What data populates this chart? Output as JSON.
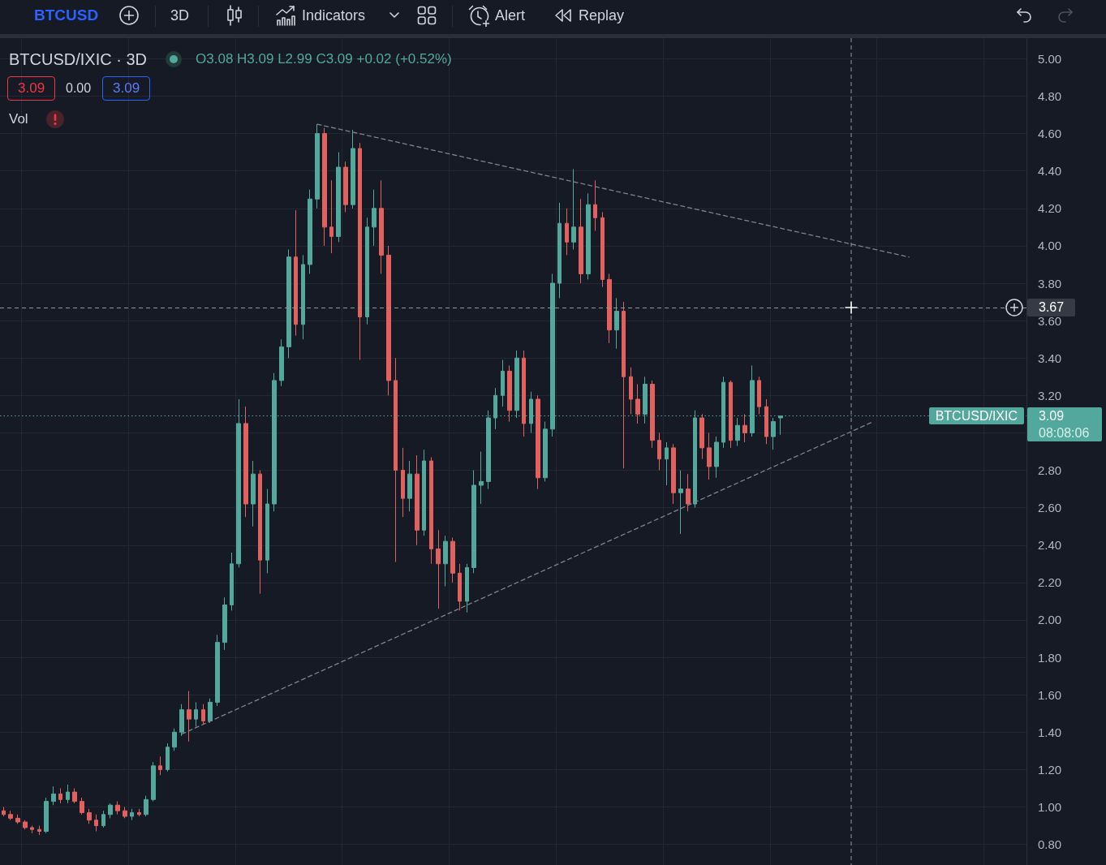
{
  "chart_data": {
    "type": "candlestick",
    "title": "BTCUSD/IXIC · 3D",
    "subtitle": "O3.08 H3.09 L2.99 C3.09 +0.02 (+0.52%)",
    "categories": [
      null,
      null,
      null,
      null,
      null,
      null,
      null,
      null,
      null,
      null,
      null,
      null,
      null,
      null,
      null,
      null,
      null,
      null,
      null,
      null,
      null,
      null,
      null,
      null,
      null,
      null,
      null,
      null,
      null,
      null,
      null,
      null,
      null,
      null,
      null,
      null,
      null,
      null,
      null,
      null,
      null,
      null,
      null,
      null,
      null,
      null,
      null,
      null,
      null,
      null,
      null,
      null,
      null,
      null,
      null,
      null,
      null,
      null,
      null,
      null,
      null,
      null,
      null,
      null,
      null,
      null,
      null,
      null,
      null,
      null,
      null,
      null,
      null,
      null,
      null,
      null,
      null,
      null,
      null,
      null,
      null,
      null,
      null,
      null,
      null,
      null,
      null,
      null,
      null,
      null,
      null,
      null,
      null,
      null,
      null,
      null,
      null,
      null,
      null,
      null,
      null,
      null,
      null,
      null,
      null,
      null,
      null,
      null,
      null,
      null,
      null,
      null,
      null,
      null,
      null,
      null,
      null,
      null,
      null,
      null,
      null,
      null,
      null,
      null,
      null,
      null,
      null,
      null,
      null,
      null,
      null,
      null,
      null,
      null,
      null,
      null,
      null,
      null,
      null,
      null,
      null,
      null,
      null,
      null
    ],
    "series": [
      {
        "type": "candlestick",
        "ohlc": [
          [
            0.98,
            1.0,
            0.95,
            0.96
          ],
          [
            0.96,
            0.98,
            0.93,
            0.94
          ],
          [
            0.94,
            0.96,
            0.91,
            0.92
          ],
          [
            0.92,
            0.93,
            0.88,
            0.89
          ],
          [
            0.89,
            0.9,
            0.86,
            0.88
          ],
          [
            0.88,
            0.9,
            0.85,
            0.87
          ],
          [
            0.87,
            1.05,
            0.86,
            1.03
          ],
          [
            1.03,
            1.11,
            1.01,
            1.07
          ],
          [
            1.07,
            1.1,
            1.02,
            1.04
          ],
          [
            1.04,
            1.12,
            1.02,
            1.08
          ],
          [
            1.08,
            1.1,
            1.02,
            1.03
          ],
          [
            1.03,
            1.05,
            0.96,
            0.97
          ],
          [
            0.97,
            0.99,
            0.91,
            0.93
          ],
          [
            0.93,
            0.96,
            0.87,
            0.9
          ],
          [
            0.9,
            0.98,
            0.89,
            0.96
          ],
          [
            0.96,
            1.02,
            0.94,
            1.01
          ],
          [
            1.01,
            1.03,
            0.96,
            0.98
          ],
          [
            0.98,
            1.0,
            0.94,
            0.95
          ],
          [
            0.95,
            0.99,
            0.93,
            0.97
          ],
          [
            0.97,
            0.99,
            0.95,
            0.96
          ],
          [
            0.96,
            1.06,
            0.95,
            1.04
          ],
          [
            1.04,
            1.24,
            1.03,
            1.22
          ],
          [
            1.22,
            1.27,
            1.17,
            1.2
          ],
          [
            1.2,
            1.34,
            1.19,
            1.32
          ],
          [
            1.32,
            1.42,
            1.3,
            1.4
          ],
          [
            1.4,
            1.55,
            1.38,
            1.52
          ],
          [
            1.52,
            1.62,
            1.35,
            1.47
          ],
          [
            1.47,
            1.56,
            1.43,
            1.52
          ],
          [
            1.52,
            1.55,
            1.44,
            1.46
          ],
          [
            1.46,
            1.58,
            1.45,
            1.56
          ],
          [
            1.56,
            1.92,
            1.54,
            1.88
          ],
          [
            1.88,
            2.12,
            1.84,
            2.08
          ],
          [
            2.08,
            2.36,
            2.05,
            2.3
          ],
          [
            2.3,
            3.18,
            2.28,
            3.05
          ],
          [
            3.05,
            3.14,
            2.55,
            2.62
          ],
          [
            2.62,
            2.85,
            2.5,
            2.78
          ],
          [
            2.78,
            2.8,
            2.14,
            2.32
          ],
          [
            2.32,
            2.7,
            2.25,
            2.62
          ],
          [
            2.62,
            3.32,
            2.58,
            3.28
          ],
          [
            3.28,
            3.5,
            3.25,
            3.46
          ],
          [
            3.46,
            3.98,
            3.4,
            3.94
          ],
          [
            3.94,
            4.19,
            3.52,
            3.58
          ],
          [
            3.58,
            3.95,
            3.5,
            3.9
          ],
          [
            3.9,
            4.3,
            3.85,
            4.25
          ],
          [
            4.25,
            4.65,
            4.2,
            4.6
          ],
          [
            4.6,
            4.63,
            4.0,
            4.1
          ],
          [
            4.1,
            4.35,
            3.96,
            4.05
          ],
          [
            4.05,
            4.5,
            4.02,
            4.42
          ],
          [
            4.42,
            4.45,
            4.18,
            4.22
          ],
          [
            4.22,
            4.62,
            4.2,
            4.52
          ],
          [
            4.52,
            4.55,
            3.39,
            3.62
          ],
          [
            3.62,
            4.15,
            3.58,
            4.1
          ],
          [
            4.1,
            4.3,
            4.0,
            4.2
          ],
          [
            4.2,
            4.35,
            3.85,
            3.95
          ],
          [
            3.95,
            4.0,
            3.2,
            3.28
          ],
          [
            3.28,
            3.4,
            2.31,
            2.8
          ],
          [
            2.8,
            2.92,
            2.55,
            2.65
          ],
          [
            2.65,
            2.85,
            2.58,
            2.78
          ],
          [
            2.78,
            2.88,
            2.4,
            2.48
          ],
          [
            2.48,
            2.91,
            2.45,
            2.85
          ],
          [
            2.85,
            2.87,
            2.3,
            2.38
          ],
          [
            2.38,
            2.48,
            2.06,
            2.3
          ],
          [
            2.3,
            2.45,
            2.18,
            2.42
          ],
          [
            2.42,
            2.44,
            2.2,
            2.25
          ],
          [
            2.25,
            2.3,
            2.05,
            2.1
          ],
          [
            2.1,
            2.3,
            2.04,
            2.28
          ],
          [
            2.28,
            2.8,
            2.25,
            2.72
          ],
          [
            2.72,
            2.9,
            2.62,
            2.74
          ],
          [
            2.74,
            3.12,
            2.7,
            3.08
          ],
          [
            3.08,
            3.24,
            3.02,
            3.2
          ],
          [
            3.2,
            3.39,
            3.14,
            3.33
          ],
          [
            3.33,
            3.36,
            3.06,
            3.12
          ],
          [
            3.12,
            3.44,
            3.08,
            3.4
          ],
          [
            3.4,
            3.44,
            2.98,
            3.05
          ],
          [
            3.05,
            3.22,
            3.0,
            3.18
          ],
          [
            3.18,
            3.2,
            2.7,
            2.76
          ],
          [
            2.76,
            3.06,
            2.74,
            3.02
          ],
          [
            3.02,
            3.85,
            2.98,
            3.8
          ],
          [
            3.8,
            4.23,
            3.72,
            4.12
          ],
          [
            4.12,
            4.2,
            3.95,
            4.02
          ],
          [
            4.02,
            4.41,
            3.98,
            4.1
          ],
          [
            4.1,
            4.25,
            3.8,
            3.85
          ],
          [
            3.85,
            4.28,
            3.82,
            4.22
          ],
          [
            4.22,
            4.35,
            4.08,
            4.15
          ],
          [
            4.15,
            4.18,
            3.78,
            3.82
          ],
          [
            3.82,
            3.85,
            3.48,
            3.55
          ],
          [
            3.55,
            3.72,
            3.45,
            3.65
          ],
          [
            3.65,
            3.7,
            2.81,
            3.3
          ],
          [
            3.3,
            3.35,
            3.1,
            3.18
          ],
          [
            3.18,
            3.26,
            3.05,
            3.1
          ],
          [
            3.1,
            3.3,
            3.05,
            3.26
          ],
          [
            3.26,
            3.28,
            2.92,
            2.96
          ],
          [
            2.96,
            3.0,
            2.8,
            2.86
          ],
          [
            2.86,
            2.95,
            2.72,
            2.92
          ],
          [
            2.92,
            2.94,
            2.62,
            2.68
          ],
          [
            2.68,
            2.8,
            2.46,
            2.7
          ],
          [
            2.7,
            2.78,
            2.58,
            2.62
          ],
          [
            2.62,
            3.12,
            2.6,
            3.08
          ],
          [
            3.08,
            3.1,
            2.86,
            2.92
          ],
          [
            2.92,
            3.0,
            2.75,
            2.82
          ],
          [
            2.82,
            2.98,
            2.76,
            2.95
          ],
          [
            2.95,
            3.3,
            2.92,
            3.27
          ],
          [
            3.27,
            3.28,
            2.92,
            2.96
          ],
          [
            2.96,
            3.08,
            2.93,
            3.04
          ],
          [
            3.04,
            3.1,
            2.95,
            3.0
          ],
          [
            3.0,
            3.36,
            2.98,
            3.28
          ],
          [
            3.28,
            3.3,
            3.1,
            3.14
          ],
          [
            3.14,
            3.18,
            2.94,
            2.98
          ],
          [
            2.98,
            3.08,
            2.91,
            3.06
          ],
          [
            3.08,
            3.09,
            2.99,
            3.09
          ],
          null,
          null,
          null,
          null,
          null,
          null,
          null,
          null,
          null,
          null,
          null,
          null,
          null,
          null,
          null,
          null,
          null,
          null,
          null,
          null,
          null,
          null,
          null,
          null,
          null,
          null,
          null,
          null,
          null,
          null,
          null,
          null,
          null,
          null
        ],
        "colors": [
          "#e2605e",
          "#e2605e",
          "#e2605e",
          "#e2605e",
          "#e2605e",
          "#e2605e",
          "#52a89c",
          "#52a89c",
          "#e2605e",
          "#52a89c",
          "#e2605e",
          "#e2605e",
          "#e2605e",
          "#e2605e",
          "#52a89c",
          "#52a89c",
          "#e2605e",
          "#e2605e",
          "#52a89c",
          "#e2605e",
          "#52a89c",
          "#52a89c",
          "#e2605e",
          "#52a89c",
          "#52a89c",
          "#52a89c",
          "#e2605e",
          "#52a89c",
          "#e2605e",
          "#52a89c",
          "#52a89c",
          "#52a89c",
          "#52a89c",
          "#52a89c",
          "#e2605e",
          "#52a89c",
          "#e2605e",
          "#52a89c",
          "#52a89c",
          "#52a89c",
          "#52a89c",
          "#e2605e",
          "#52a89c",
          "#52a89c",
          "#52a89c",
          "#e2605e",
          "#e2605e",
          "#52a89c",
          "#e2605e",
          "#52a89c",
          "#e2605e",
          "#52a89c",
          "#52a89c",
          "#e2605e",
          "#e2605e",
          "#e2605e",
          "#e2605e",
          "#52a89c",
          "#e2605e",
          "#52a89c",
          "#e2605e",
          "#e2605e",
          "#52a89c",
          "#e2605e",
          "#e2605e",
          "#52a89c",
          "#52a89c",
          "#52a89c",
          "#52a89c",
          "#52a89c",
          "#52a89c",
          "#e2605e",
          "#52a89c",
          "#e2605e",
          "#52a89c",
          "#e2605e",
          "#52a89c",
          "#52a89c",
          "#52a89c",
          "#e2605e",
          "#52a89c",
          "#e2605e",
          "#52a89c",
          "#e2605e",
          "#e2605e",
          "#e2605e",
          "#52a89c",
          "#e2605e",
          "#e2605e",
          "#e2605e",
          "#52a89c",
          "#e2605e",
          "#e2605e",
          "#52a89c",
          "#e2605e",
          "#52a89c",
          "#e2605e",
          "#52a89c",
          "#e2605e",
          "#e2605e",
          "#52a89c",
          "#52a89c",
          "#e2605e",
          "#52a89c",
          "#e2605e",
          "#52a89c",
          "#e2605e",
          "#e2605e",
          "#52a89c",
          "#52a89c",
          null,
          null,
          null,
          null,
          null,
          null,
          null,
          null,
          null,
          null,
          null,
          null,
          null,
          null,
          null,
          null,
          null,
          null,
          null,
          null,
          null,
          null,
          null,
          null,
          null,
          null,
          null,
          null,
          null,
          null,
          null,
          null,
          null,
          null
        ]
      },
      {
        "type": "line",
        "color": "#7f838e",
        "line_style": "dashed",
        "marker": "none",
        "values": [
          null,
          null,
          null,
          null,
          null,
          null,
          null,
          null,
          null,
          null,
          null,
          null,
          null,
          null,
          null,
          null,
          null,
          null,
          null,
          null,
          null,
          null,
          null,
          null,
          null,
          null,
          null,
          null,
          null,
          null,
          null,
          null,
          null,
          null,
          null,
          null,
          null,
          null,
          null,
          null,
          null,
          null,
          null,
          null,
          4.65,
          null,
          null,
          null,
          null,
          null,
          null,
          null,
          null,
          null,
          null,
          null,
          null,
          null,
          null,
          null,
          null,
          null,
          null,
          null,
          null,
          null,
          null,
          null,
          null,
          null,
          null,
          null,
          null,
          null,
          null,
          null,
          null,
          null,
          null,
          null,
          null,
          null,
          null,
          null,
          null,
          null,
          null,
          null,
          null,
          null,
          null,
          null,
          null,
          null,
          null,
          null,
          null,
          null,
          null,
          null,
          null,
          null,
          null,
          null,
          null,
          null,
          null,
          null,
          null,
          null,
          null,
          null,
          null,
          null,
          null,
          null,
          null,
          null,
          null,
          null,
          null,
          null,
          null,
          null,
          null,
          null,
          null,
          3.94,
          null,
          null,
          null,
          null,
          null,
          null,
          null,
          null,
          null,
          null,
          null,
          null,
          null,
          null,
          null,
          null
        ]
      },
      {
        "type": "line",
        "color": "#7f838e",
        "line_style": "dashed",
        "marker": "none",
        "values": [
          null,
          null,
          null,
          null,
          null,
          null,
          null,
          null,
          null,
          null,
          null,
          null,
          null,
          null,
          null,
          null,
          null,
          null,
          null,
          null,
          null,
          null,
          null,
          null,
          null,
          1.39,
          null,
          null,
          null,
          null,
          null,
          null,
          null,
          null,
          null,
          null,
          null,
          null,
          null,
          null,
          null,
          null,
          null,
          null,
          null,
          null,
          null,
          null,
          null,
          null,
          null,
          null,
          null,
          null,
          null,
          null,
          null,
          null,
          null,
          null,
          null,
          null,
          null,
          null,
          null,
          null,
          null,
          null,
          null,
          null,
          null,
          null,
          null,
          null,
          null,
          null,
          null,
          null,
          null,
          null,
          null,
          null,
          null,
          null,
          null,
          null,
          null,
          null,
          null,
          null,
          null,
          null,
          null,
          null,
          null,
          null,
          null,
          null,
          null,
          null,
          null,
          null,
          null,
          null,
          null,
          null,
          null,
          null,
          null,
          null,
          null,
          null,
          null,
          null,
          null,
          null,
          null,
          null,
          null,
          null,
          null,
          null,
          3.06,
          null,
          null,
          null,
          null,
          null,
          null,
          null,
          null,
          null,
          null,
          null,
          null,
          null,
          null,
          null,
          null,
          null,
          null,
          null,
          null,
          null
        ]
      }
    ],
    "ylim": [
      0.69,
      5.11
    ],
    "yticks": [
      {
        "value": 0.8,
        "label": "0.80"
      },
      {
        "value": 1,
        "label": "1.00"
      },
      {
        "value": 1.2,
        "label": "1.20"
      },
      {
        "value": 1.4,
        "label": "1.40"
      },
      {
        "value": 1.6,
        "label": "1.60"
      },
      {
        "value": 1.8,
        "label": "1.80"
      },
      {
        "value": 2,
        "label": "2.00"
      },
      {
        "value": 2.2,
        "label": "2.20"
      },
      {
        "value": 2.4,
        "label": "2.40"
      },
      {
        "value": 2.6,
        "label": "2.60"
      },
      {
        "value": 2.8,
        "label": "2.80"
      },
      {
        "value": 3,
        "label": null
      },
      {
        "value": 3.2,
        "label": "3.20"
      },
      {
        "value": 3.4,
        "label": "3.40"
      },
      {
        "value": 3.6,
        "label": "3.60"
      },
      {
        "value": 3.8,
        "label": "3.80"
      },
      {
        "value": 4,
        "label": "4.00"
      },
      {
        "value": 4.2,
        "label": "4.20"
      },
      {
        "value": 4.4,
        "label": "4.40"
      },
      {
        "value": 4.6,
        "label": "4.60"
      },
      {
        "value": 4.8,
        "label": "4.80"
      },
      {
        "value": 5,
        "label": "5.00"
      }
    ],
    "ref_lines": [
      {
        "axis": "y",
        "value": 3.67,
        "label": "3.67",
        "color": "#9598a1",
        "line_style": "dashed"
      },
      {
        "axis": "y",
        "value": 3.09,
        "label": "3.09",
        "color": "#52a89c",
        "line_style": "dotted"
      }
    ],
    "annotations": [
      "BTCUSD",
      "3D",
      "Indicators",
      "Alert",
      "Replay",
      "3.09",
      "0.00",
      "3.09",
      "Vol",
      {
        "text": "BTCUSD/IXIC",
        "y": 3.09
      },
      "08:08:06"
    ],
    "grid": true,
    "tick_labels": "y"
  }
}
